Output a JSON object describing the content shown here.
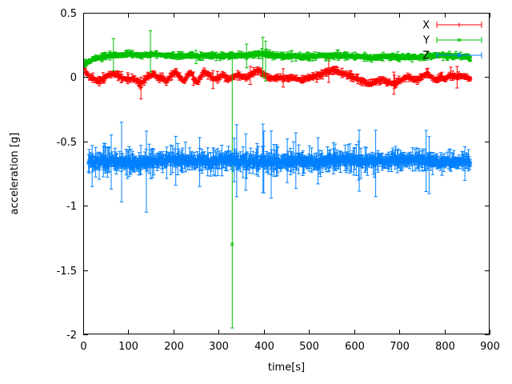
{
  "window": {
    "background": "#ffffff"
  },
  "chart_data": {
    "type": "scatter",
    "style": "points-with-errorbars",
    "title": "",
    "xlabel": "time[s]",
    "ylabel": "acceleration [g]",
    "xlim": [
      0,
      900
    ],
    "ylim": [
      -2,
      0.5
    ],
    "xticks": [
      0,
      100,
      200,
      300,
      400,
      500,
      600,
      700,
      800,
      900
    ],
    "xtick_labels": [
      "0",
      "100",
      "200",
      "300",
      "400",
      "500",
      "600",
      "700",
      "800",
      "900"
    ],
    "yticks": [
      0.5,
      0,
      -0.5,
      -1,
      -1.5,
      -2
    ],
    "ytick_labels": [
      "0.5",
      "0",
      "-0.5",
      "-1",
      "-1.5",
      "-2"
    ],
    "grid": false,
    "axis_color": "#000000",
    "text_color": "#000000",
    "legend": {
      "position": "top-right-inside"
    },
    "seed": 1337,
    "series": [
      {
        "name": "X",
        "color": "#ff0000",
        "marker": "plus",
        "t_start": 2,
        "t_end": 858,
        "dt": 1.4,
        "noise": 0.012,
        "err_base": 0.012,
        "err_var": 0.02,
        "trend": [
          [
            2,
            0.08
          ],
          [
            6,
            0.04
          ],
          [
            15,
            0.0
          ],
          [
            25,
            -0.02
          ],
          [
            35,
            -0.03
          ],
          [
            45,
            -0.01
          ],
          [
            55,
            0.01
          ],
          [
            65,
            0.03
          ],
          [
            75,
            0.02
          ],
          [
            85,
            0.0
          ],
          [
            95,
            -0.02
          ],
          [
            105,
            -0.01
          ],
          [
            115,
            -0.02
          ],
          [
            122,
            -0.04
          ],
          [
            128,
            -0.06
          ],
          [
            134,
            -0.02
          ],
          [
            145,
            0.01
          ],
          [
            155,
            0.02
          ],
          [
            165,
            0.0
          ],
          [
            175,
            -0.01
          ],
          [
            185,
            -0.03
          ],
          [
            195,
            0.01
          ],
          [
            205,
            0.04
          ],
          [
            215,
            0.0
          ],
          [
            222,
            -0.04
          ],
          [
            230,
            0.02
          ],
          [
            238,
            0.04
          ],
          [
            246,
            -0.02
          ],
          [
            254,
            -0.04
          ],
          [
            262,
            0.02
          ],
          [
            270,
            0.04
          ],
          [
            280,
            0.01
          ],
          [
            290,
            -0.02
          ],
          [
            300,
            0.0
          ],
          [
            310,
            0.02
          ],
          [
            320,
            -0.01
          ],
          [
            330,
            0.0
          ],
          [
            340,
            0.02
          ],
          [
            350,
            0.01
          ],
          [
            360,
            0.0
          ],
          [
            370,
            0.02
          ],
          [
            380,
            0.04
          ],
          [
            390,
            0.05
          ],
          [
            400,
            0.02
          ],
          [
            410,
            0.0
          ],
          [
            420,
            -0.01
          ],
          [
            435,
            0.0
          ],
          [
            450,
            -0.01
          ],
          [
            465,
            0.0
          ],
          [
            480,
            -0.02
          ],
          [
            495,
            -0.01
          ],
          [
            510,
            0.0
          ],
          [
            525,
            0.02
          ],
          [
            540,
            0.04
          ],
          [
            552,
            0.06
          ],
          [
            562,
            0.05
          ],
          [
            572,
            0.04
          ],
          [
            585,
            0.02
          ],
          [
            600,
            0.0
          ],
          [
            612,
            -0.02
          ],
          [
            625,
            -0.04
          ],
          [
            638,
            -0.05
          ],
          [
            650,
            -0.03
          ],
          [
            662,
            -0.02
          ],
          [
            675,
            -0.04
          ],
          [
            688,
            -0.05
          ],
          [
            700,
            -0.03
          ],
          [
            712,
            -0.01
          ],
          [
            725,
            0.0
          ],
          [
            738,
            -0.02
          ],
          [
            750,
            0.0
          ],
          [
            762,
            0.03
          ],
          [
            772,
            0.0
          ],
          [
            782,
            -0.03
          ],
          [
            792,
            0.01
          ],
          [
            802,
            -0.02
          ],
          [
            812,
            0.02
          ],
          [
            822,
            0.0
          ],
          [
            835,
            0.01
          ],
          [
            848,
            0.0
          ],
          [
            858,
            -0.01
          ]
        ],
        "outliers": [
          [
            128,
            -0.08,
            -0.17,
            0.0
          ]
        ]
      },
      {
        "name": "Y",
        "color": "#00c000",
        "marker": "cross",
        "t_start": 2,
        "t_end": 858,
        "dt": 1.4,
        "noise": 0.01,
        "err_base": 0.011,
        "err_var": 0.02,
        "trend": [
          [
            2,
            0.1
          ],
          [
            8,
            0.11
          ],
          [
            18,
            0.13
          ],
          [
            30,
            0.15
          ],
          [
            45,
            0.16
          ],
          [
            60,
            0.17
          ],
          [
            80,
            0.17
          ],
          [
            100,
            0.18
          ],
          [
            120,
            0.17
          ],
          [
            140,
            0.17
          ],
          [
            160,
            0.18
          ],
          [
            180,
            0.17
          ],
          [
            200,
            0.17
          ],
          [
            220,
            0.16
          ],
          [
            240,
            0.17
          ],
          [
            260,
            0.16
          ],
          [
            280,
            0.17
          ],
          [
            300,
            0.16
          ],
          [
            320,
            0.17
          ],
          [
            340,
            0.17
          ],
          [
            360,
            0.17
          ],
          [
            380,
            0.18
          ],
          [
            400,
            0.18
          ],
          [
            420,
            0.17
          ],
          [
            440,
            0.16
          ],
          [
            460,
            0.17
          ],
          [
            480,
            0.16
          ],
          [
            500,
            0.16
          ],
          [
            520,
            0.17
          ],
          [
            540,
            0.16
          ],
          [
            560,
            0.17
          ],
          [
            580,
            0.17
          ],
          [
            600,
            0.16
          ],
          [
            620,
            0.16
          ],
          [
            640,
            0.15
          ],
          [
            660,
            0.16
          ],
          [
            680,
            0.16
          ],
          [
            700,
            0.15
          ],
          [
            720,
            0.16
          ],
          [
            740,
            0.15
          ],
          [
            760,
            0.16
          ],
          [
            780,
            0.17
          ],
          [
            800,
            0.17
          ],
          [
            820,
            0.16
          ],
          [
            840,
            0.16
          ],
          [
            858,
            0.15
          ]
        ],
        "outliers": [
          [
            67,
            0.17,
            0.05,
            0.3
          ],
          [
            149,
            0.18,
            0.04,
            0.36
          ],
          [
            330,
            -1.3,
            -1.95,
            0.16
          ],
          [
            398,
            0.18,
            0.0,
            0.31
          ],
          [
            404,
            0.17,
            -0.03,
            0.28
          ]
        ]
      },
      {
        "name": "Z",
        "color": "#0080ff",
        "marker": "star",
        "t_start": 12,
        "t_end": 858,
        "dt": 1.3,
        "noise": 0.028,
        "err_base": 0.035,
        "err_var": 0.09,
        "taper_t": 620,
        "taper": 0.75,
        "trend": [
          [
            12,
            -0.66
          ],
          [
            40,
            -0.65
          ],
          [
            80,
            -0.66
          ],
          [
            120,
            -0.67
          ],
          [
            160,
            -0.65
          ],
          [
            200,
            -0.64
          ],
          [
            240,
            -0.65
          ],
          [
            280,
            -0.66
          ],
          [
            320,
            -0.64
          ],
          [
            360,
            -0.66
          ],
          [
            400,
            -0.65
          ],
          [
            440,
            -0.66
          ],
          [
            480,
            -0.65
          ],
          [
            520,
            -0.66
          ],
          [
            560,
            -0.64
          ],
          [
            600,
            -0.65
          ],
          [
            640,
            -0.66
          ],
          [
            680,
            -0.65
          ],
          [
            720,
            -0.64
          ],
          [
            760,
            -0.65
          ],
          [
            800,
            -0.66
          ],
          [
            830,
            -0.65
          ],
          [
            858,
            -0.65
          ]
        ],
        "outliers": [
          [
            62,
            -0.66,
            -0.87,
            -0.45
          ],
          [
            85,
            -0.65,
            -0.97,
            -0.35
          ],
          [
            140,
            -0.68,
            -1.05,
            -0.42
          ],
          [
            205,
            -0.64,
            -0.84,
            -0.46
          ],
          [
            258,
            -0.65,
            -0.85,
            -0.47
          ],
          [
            340,
            -0.65,
            -0.93,
            -0.37
          ],
          [
            360,
            -0.66,
            -0.88,
            -0.44
          ],
          [
            400,
            -0.66,
            -0.9,
            -0.42
          ],
          [
            452,
            -0.64,
            -0.82,
            -0.48
          ],
          [
            520,
            -0.65,
            -0.83,
            -0.47
          ],
          [
            610,
            -0.65,
            -0.8,
            -0.5
          ]
        ]
      }
    ]
  }
}
